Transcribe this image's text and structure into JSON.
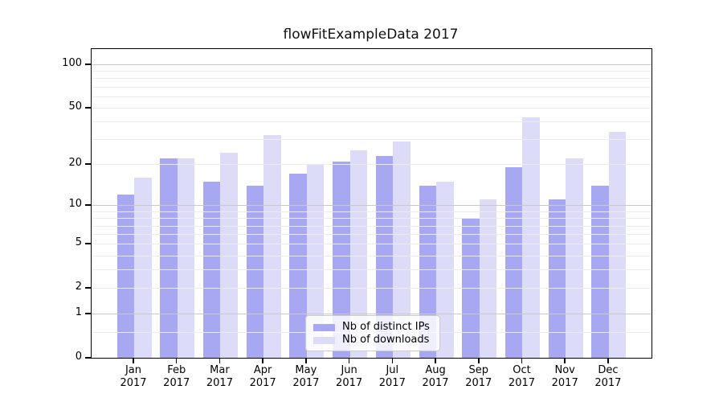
{
  "chart_data": {
    "type": "bar",
    "title": "flowFitExampleData 2017",
    "categories": [
      "Jan",
      "Feb",
      "Mar",
      "Apr",
      "May",
      "Jun",
      "Jul",
      "Aug",
      "Sep",
      "Oct",
      "Nov",
      "Dec"
    ],
    "category_year_line": "2017",
    "series": [
      {
        "name": "Nb of distinct IPs",
        "color": "#a7a7f2",
        "values": [
          12,
          22,
          15,
          14,
          17,
          21,
          23,
          14,
          8,
          19,
          11,
          14
        ]
      },
      {
        "name": "Nb of downloads",
        "color": "#dcdcf8",
        "values": [
          16,
          22,
          24,
          32,
          20,
          25,
          29,
          15,
          11,
          43,
          22,
          34
        ]
      }
    ],
    "yscale": "log1p",
    "ylim": [
      0,
      130
    ],
    "yticks": [
      0,
      1,
      2,
      5,
      10,
      20,
      50,
      100
    ],
    "major_gridlines": [
      1,
      10,
      100
    ],
    "minor_gridlines": [
      0.5,
      2,
      3,
      4,
      5,
      6,
      7,
      8,
      9,
      20,
      30,
      40,
      50,
      60,
      70,
      80,
      90
    ],
    "grid": true,
    "legend_position": "lower center"
  },
  "colors": {
    "minor_grid": "#ececec",
    "major_grid": "#c9c9c9",
    "spine": "#000000",
    "background": "#ffffff"
  }
}
